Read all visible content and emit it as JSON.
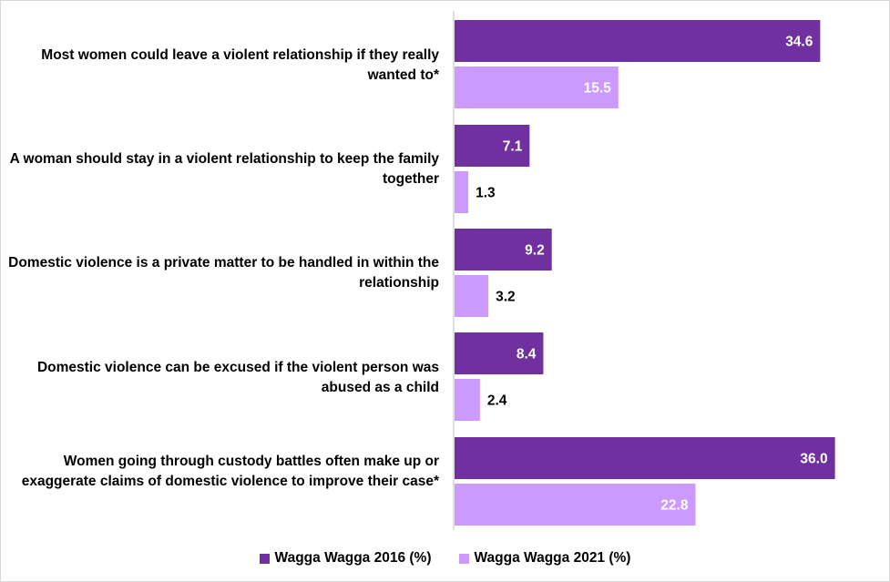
{
  "chart_data": {
    "type": "bar",
    "orientation": "horizontal",
    "categories": [
      "Most women could leave a violent relationship if they really wanted to*",
      "A woman should stay in a violent relationship to keep the family together",
      "Domestic violence is a private matter to be handled in within the relationship",
      "Domestic violence can be excused if the violent person was abused as a child",
      "Women going through custody battles often make up or exaggerate claims of domestic violence to improve their case*"
    ],
    "series": [
      {
        "name": "Wagga Wagga 2016 (%)",
        "color": "#7030a0",
        "values": [
          34.6,
          7.1,
          9.2,
          8.4,
          36.0
        ]
      },
      {
        "name": "Wagga Wagga 2021 (%)",
        "color": "#cc99ff",
        "values": [
          15.5,
          1.3,
          3.2,
          2.4,
          22.8
        ]
      }
    ],
    "data_labels": [
      [
        "34.6",
        "7.1",
        "9.2",
        "8.4",
        "36.0"
      ],
      [
        "15.5",
        "1.3",
        "3.2",
        "2.4",
        "22.8"
      ]
    ],
    "xlim": [
      0,
      40
    ],
    "grid": false,
    "legend_position": "bottom",
    "title": "",
    "xlabel": "",
    "ylabel": ""
  }
}
